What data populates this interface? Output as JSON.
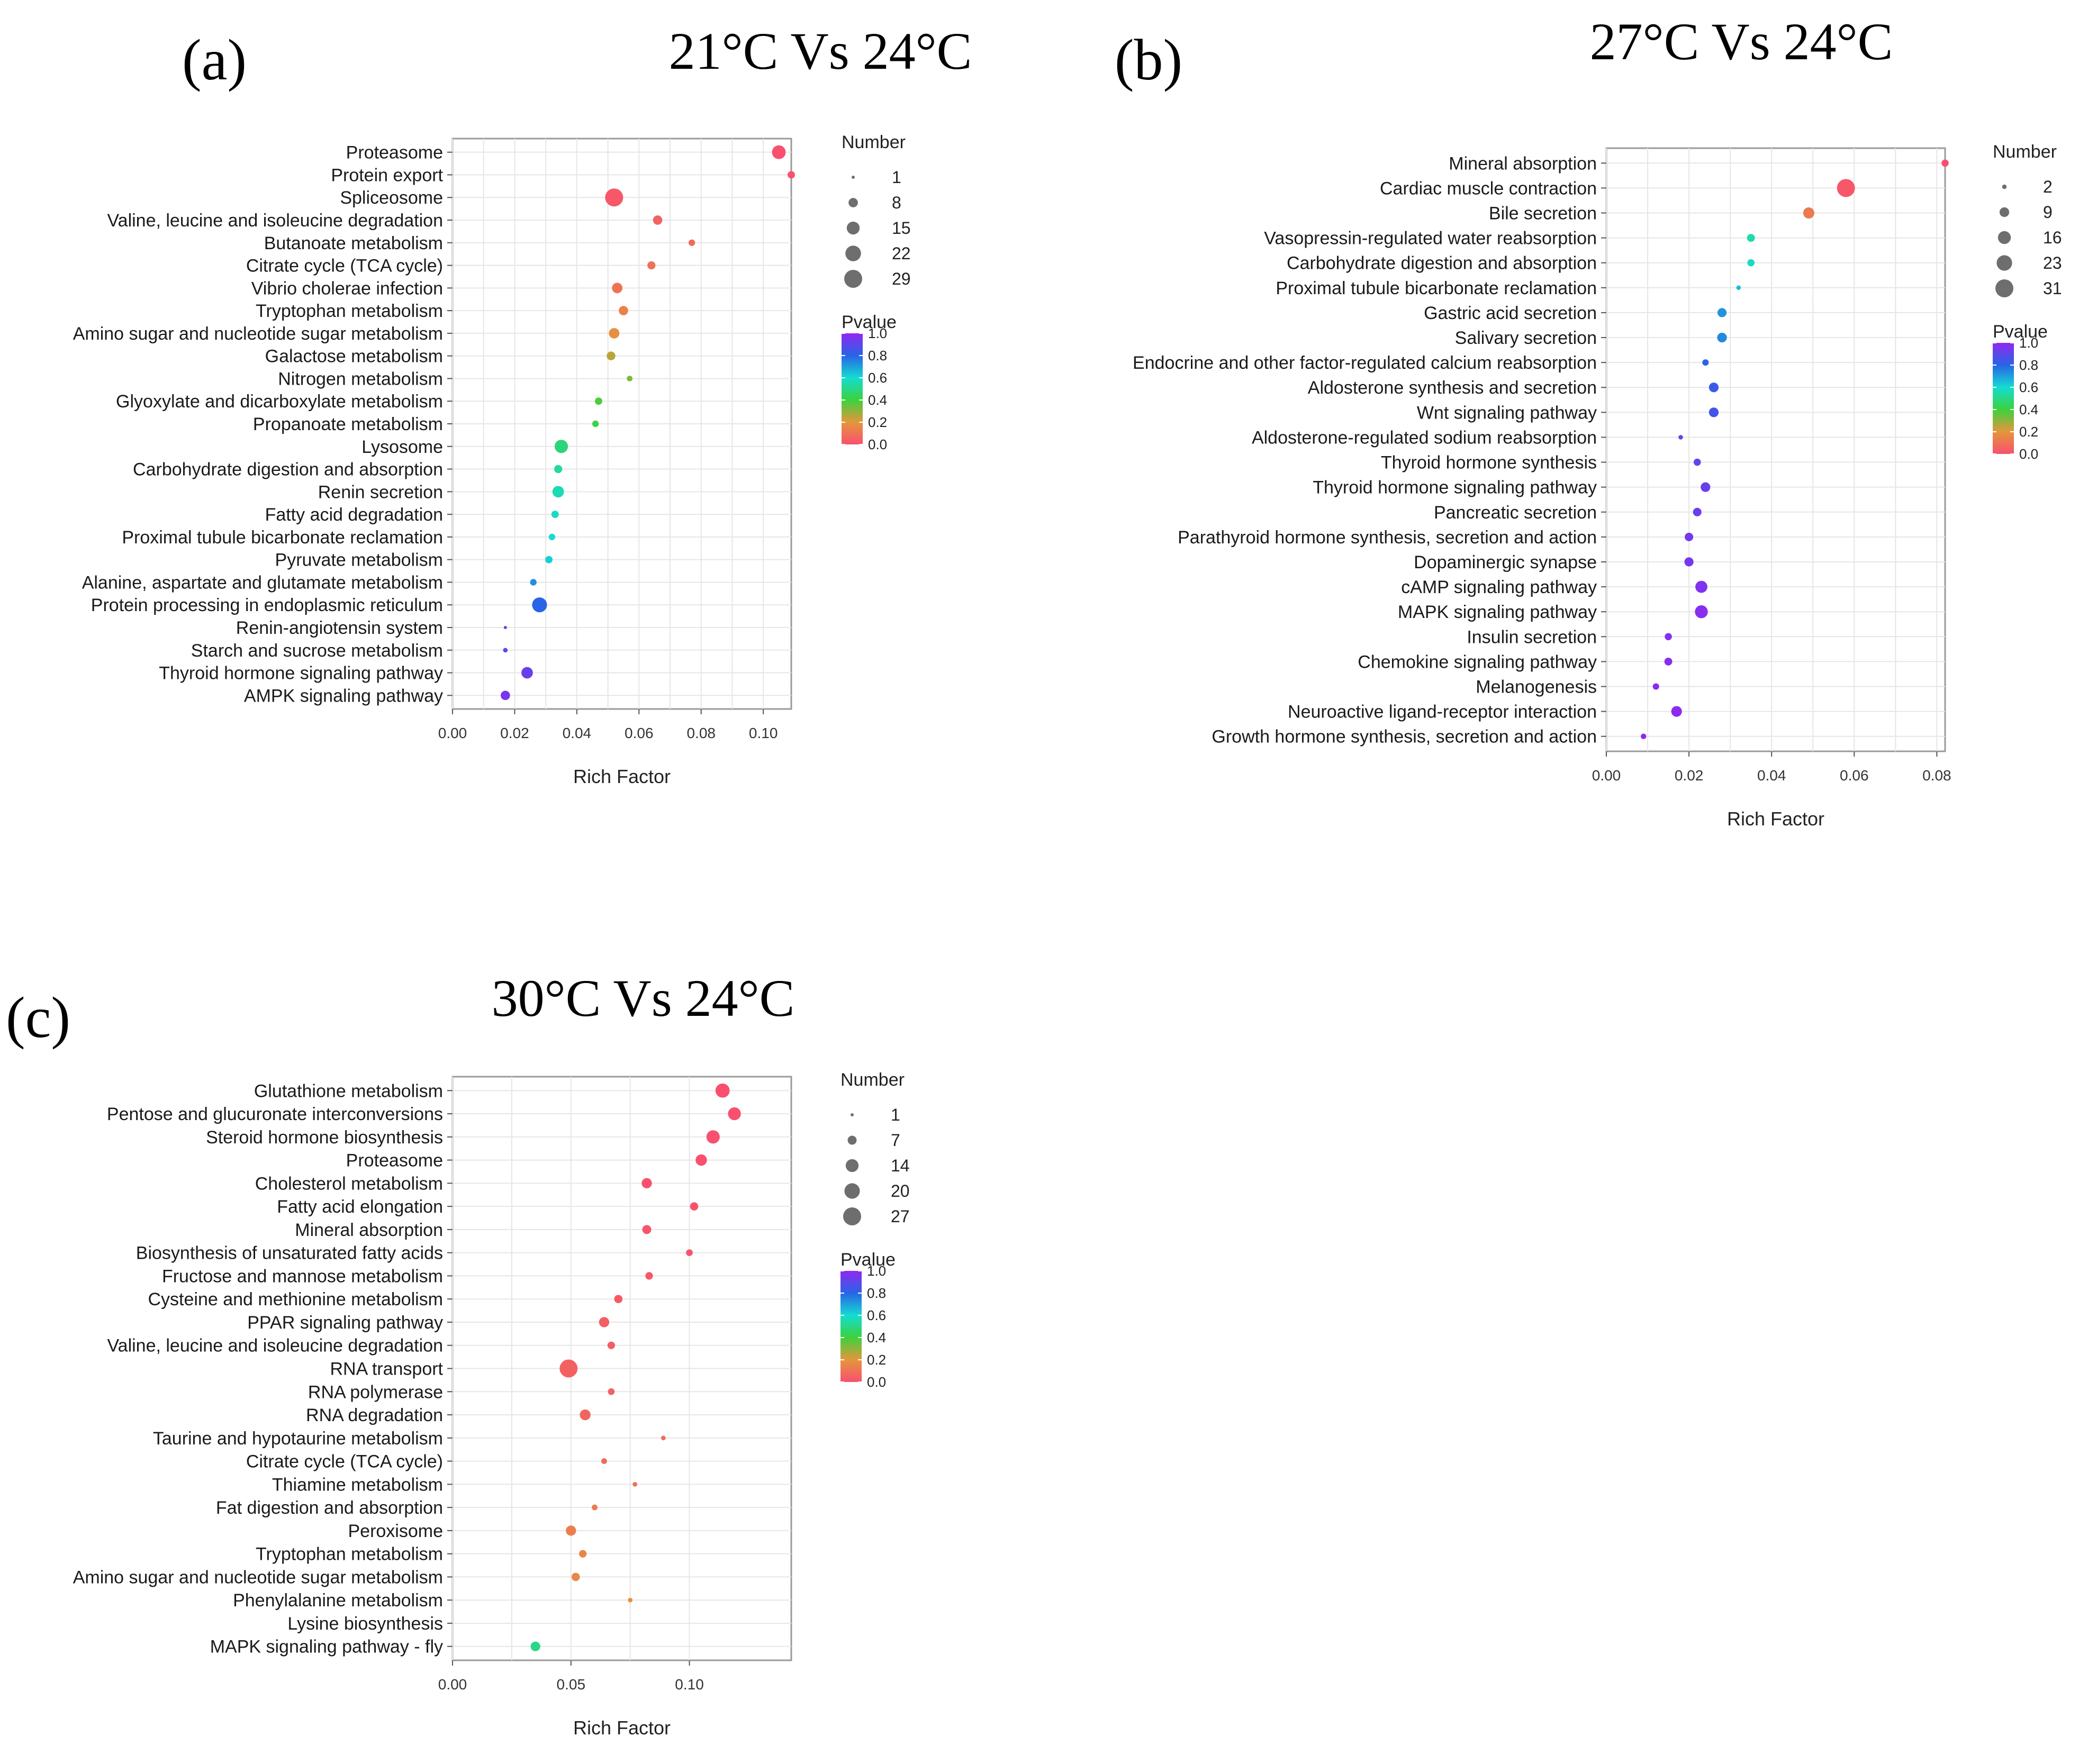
{
  "chart_data": [
    {
      "type": "scatter",
      "panel_label": "(a)",
      "title": "21°C Vs 24°C",
      "xlabel": "Rich Factor",
      "ylabel": "",
      "xlim": [
        0.0,
        0.109
      ],
      "xticks": [
        0.0,
        0.02,
        0.04,
        0.06,
        0.08,
        0.1
      ],
      "xtick_labels": [
        "0.00",
        "0.02",
        "0.04",
        "0.06",
        "0.08",
        "0.10"
      ],
      "size_legend_title": "Number",
      "size_legend": [
        1,
        8,
        15,
        22,
        29
      ],
      "size_range": [
        1,
        29
      ],
      "color_legend_title": "Pvalue",
      "color_ticks": [
        "1.0",
        "0.8",
        "0.6",
        "0.4",
        "0.2",
        "0.0"
      ],
      "points": [
        {
          "label": "Proteasome",
          "rich_factor": 0.105,
          "number": 17,
          "pvalue": 0.0
        },
        {
          "label": "Protein export",
          "rich_factor": 0.109,
          "number": 5,
          "pvalue": 0.0
        },
        {
          "label": "Spliceosome",
          "rich_factor": 0.052,
          "number": 29,
          "pvalue": 0.02
        },
        {
          "label": "Valine, leucine and isoleucine degradation",
          "rich_factor": 0.066,
          "number": 8,
          "pvalue": 0.05
        },
        {
          "label": "Butanoate metabolism",
          "rich_factor": 0.077,
          "number": 4,
          "pvalue": 0.08
        },
        {
          "label": "Citrate cycle (TCA cycle)",
          "rich_factor": 0.064,
          "number": 6,
          "pvalue": 0.1
        },
        {
          "label": "Vibrio cholerae infection",
          "rich_factor": 0.053,
          "number": 10,
          "pvalue": 0.1
        },
        {
          "label": "Tryptophan metabolism",
          "rich_factor": 0.055,
          "number": 8,
          "pvalue": 0.14
        },
        {
          "label": "Amino sugar and nucleotide sugar metabolism",
          "rich_factor": 0.052,
          "number": 10,
          "pvalue": 0.18
        },
        {
          "label": "Galactose metabolism",
          "rich_factor": 0.051,
          "number": 7,
          "pvalue": 0.25
        },
        {
          "label": "Nitrogen metabolism",
          "rich_factor": 0.057,
          "number": 3,
          "pvalue": 0.33
        },
        {
          "label": "Glyoxylate and dicarboxylate metabolism",
          "rich_factor": 0.047,
          "number": 5,
          "pvalue": 0.38
        },
        {
          "label": "Propanoate metabolism",
          "rich_factor": 0.046,
          "number": 4,
          "pvalue": 0.42
        },
        {
          "label": "Lysosome",
          "rich_factor": 0.035,
          "number": 16,
          "pvalue": 0.48
        },
        {
          "label": "Carbohydrate digestion and absorption",
          "rich_factor": 0.034,
          "number": 6,
          "pvalue": 0.53
        },
        {
          "label": "Renin secretion",
          "rich_factor": 0.034,
          "number": 12,
          "pvalue": 0.56
        },
        {
          "label": "Fatty acid degradation",
          "rich_factor": 0.033,
          "number": 5,
          "pvalue": 0.58
        },
        {
          "label": "Proximal tubule bicarbonate reclamation",
          "rich_factor": 0.032,
          "number": 4,
          "pvalue": 0.6
        },
        {
          "label": "Pyruvate metabolism",
          "rich_factor": 0.031,
          "number": 5,
          "pvalue": 0.62
        },
        {
          "label": "Alanine, aspartate and glutamate metabolism",
          "rich_factor": 0.026,
          "number": 4,
          "pvalue": 0.73
        },
        {
          "label": "Protein processing in endoplasmic reticulum",
          "rich_factor": 0.028,
          "number": 20,
          "pvalue": 0.8
        },
        {
          "label": "Renin-angiotensin system",
          "rich_factor": 0.017,
          "number": 1,
          "pvalue": 0.9
        },
        {
          "label": "Starch and sucrose metabolism",
          "rich_factor": 0.017,
          "number": 2,
          "pvalue": 0.88
        },
        {
          "label": "Thyroid hormone signaling pathway",
          "rich_factor": 0.024,
          "number": 12,
          "pvalue": 0.92
        },
        {
          "label": "AMPK signaling pathway",
          "rich_factor": 0.017,
          "number": 8,
          "pvalue": 0.95
        }
      ]
    },
    {
      "type": "scatter",
      "panel_label": "(b)",
      "title": "27°C Vs 24°C",
      "xlabel": "Rich Factor",
      "ylabel": "",
      "xlim": [
        0.0,
        0.082
      ],
      "xticks": [
        0.0,
        0.02,
        0.04,
        0.06,
        0.08
      ],
      "xtick_labels": [
        "0.00",
        "0.02",
        "0.04",
        "0.06",
        "0.08"
      ],
      "size_legend_title": "Number",
      "size_legend": [
        2,
        9,
        16,
        23,
        31
      ],
      "size_range": [
        1,
        31
      ],
      "color_legend_title": "Pvalue",
      "color_ticks": [
        "1.0",
        "0.8",
        "0.6",
        "0.4",
        "0.2",
        "0.0"
      ],
      "points": [
        {
          "label": "Mineral absorption",
          "rich_factor": 0.082,
          "number": 5,
          "pvalue": 0.0
        },
        {
          "label": "Cardiac muscle contraction",
          "rich_factor": 0.058,
          "number": 31,
          "pvalue": 0.02
        },
        {
          "label": "Bile secretion",
          "rich_factor": 0.049,
          "number": 12,
          "pvalue": 0.12
        },
        {
          "label": "Vasopressin-regulated water reabsorption",
          "rich_factor": 0.035,
          "number": 6,
          "pvalue": 0.55
        },
        {
          "label": "Carbohydrate digestion and absorption",
          "rich_factor": 0.035,
          "number": 5,
          "pvalue": 0.58
        },
        {
          "label": "Proximal tubule bicarbonate reclamation",
          "rich_factor": 0.032,
          "number": 2,
          "pvalue": 0.65
        },
        {
          "label": "Gastric acid secretion",
          "rich_factor": 0.028,
          "number": 8,
          "pvalue": 0.72
        },
        {
          "label": "Salivary secretion",
          "rich_factor": 0.028,
          "number": 9,
          "pvalue": 0.74
        },
        {
          "label": "Endocrine and other factor-regulated calcium reabsorption",
          "rich_factor": 0.024,
          "number": 4,
          "pvalue": 0.8
        },
        {
          "label": "Aldosterone synthesis and secretion",
          "rich_factor": 0.026,
          "number": 9,
          "pvalue": 0.83
        },
        {
          "label": "Wnt signaling pathway",
          "rich_factor": 0.026,
          "number": 9,
          "pvalue": 0.85
        },
        {
          "label": "Aldosterone-regulated sodium reabsorption",
          "rich_factor": 0.018,
          "number": 2,
          "pvalue": 0.88
        },
        {
          "label": "Thyroid hormone synthesis",
          "rich_factor": 0.022,
          "number": 5,
          "pvalue": 0.9
        },
        {
          "label": "Thyroid hormone signaling pathway",
          "rich_factor": 0.024,
          "number": 9,
          "pvalue": 0.92
        },
        {
          "label": "Pancreatic secretion",
          "rich_factor": 0.022,
          "number": 7,
          "pvalue": 0.93
        },
        {
          "label": "Parathyroid hormone synthesis, secretion and action",
          "rich_factor": 0.02,
          "number": 7,
          "pvalue": 0.94
        },
        {
          "label": "Dopaminergic synapse",
          "rich_factor": 0.02,
          "number": 8,
          "pvalue": 0.95
        },
        {
          "label": "cAMP signaling pathway",
          "rich_factor": 0.023,
          "number": 14,
          "pvalue": 0.97
        },
        {
          "label": "MAPK signaling pathway",
          "rich_factor": 0.023,
          "number": 16,
          "pvalue": 0.98
        },
        {
          "label": "Insulin secretion",
          "rich_factor": 0.015,
          "number": 5,
          "pvalue": 0.97
        },
        {
          "label": "Chemokine signaling pathway",
          "rich_factor": 0.015,
          "number": 6,
          "pvalue": 0.98
        },
        {
          "label": "Melanogenesis",
          "rich_factor": 0.012,
          "number": 4,
          "pvalue": 0.98
        },
        {
          "label": "Neuroactive ligand-receptor interaction",
          "rich_factor": 0.017,
          "number": 11,
          "pvalue": 0.99
        },
        {
          "label": "Growth hormone synthesis, secretion and action",
          "rich_factor": 0.009,
          "number": 3,
          "pvalue": 1.0
        }
      ]
    },
    {
      "type": "scatter",
      "panel_label": "(c)",
      "title": "30°C Vs 24°C",
      "xlabel": "Rich Factor",
      "ylabel": "",
      "xlim": [
        0.0,
        0.143
      ],
      "xticks": [
        0.0,
        0.05,
        0.1
      ],
      "xtick_labels": [
        "0.00",
        "0.05",
        "0.10"
      ],
      "size_legend_title": "Number",
      "size_legend": [
        1,
        7,
        14,
        20,
        27
      ],
      "size_range": [
        1,
        27
      ],
      "color_legend_title": "Pvalue",
      "color_ticks": [
        "1.0",
        "0.8",
        "0.6",
        "0.4",
        "0.2",
        "0.0"
      ],
      "points": [
        {
          "label": "Glutathione metabolism",
          "rich_factor": 0.114,
          "number": 17,
          "pvalue": 0.0
        },
        {
          "label": "Pentose and glucuronate interconversions",
          "rich_factor": 0.119,
          "number": 14,
          "pvalue": 0.0
        },
        {
          "label": "Steroid hormone biosynthesis",
          "rich_factor": 0.11,
          "number": 15,
          "pvalue": 0.0
        },
        {
          "label": "Proteasome",
          "rich_factor": 0.105,
          "number": 11,
          "pvalue": 0.0
        },
        {
          "label": "Cholesterol metabolism",
          "rich_factor": 0.082,
          "number": 9,
          "pvalue": 0.0
        },
        {
          "label": "Fatty acid elongation",
          "rich_factor": 0.102,
          "number": 6,
          "pvalue": 0.01
        },
        {
          "label": "Mineral absorption",
          "rich_factor": 0.082,
          "number": 7,
          "pvalue": 0.01
        },
        {
          "label": "Biosynthesis of unsaturated fatty acids",
          "rich_factor": 0.1,
          "number": 4,
          "pvalue": 0.01
        },
        {
          "label": "Fructose and mannose metabolism",
          "rich_factor": 0.083,
          "number": 5,
          "pvalue": 0.02
        },
        {
          "label": "Cysteine and methionine metabolism",
          "rich_factor": 0.07,
          "number": 6,
          "pvalue": 0.03
        },
        {
          "label": "PPAR signaling pathway",
          "rich_factor": 0.064,
          "number": 9,
          "pvalue": 0.04
        },
        {
          "label": "Valine, leucine and isoleucine degradation",
          "rich_factor": 0.067,
          "number": 5,
          "pvalue": 0.04
        },
        {
          "label": "RNA transport",
          "rich_factor": 0.049,
          "number": 27,
          "pvalue": 0.05
        },
        {
          "label": "RNA polymerase",
          "rich_factor": 0.067,
          "number": 4,
          "pvalue": 0.05
        },
        {
          "label": "RNA degradation",
          "rich_factor": 0.056,
          "number": 10,
          "pvalue": 0.06
        },
        {
          "label": "Taurine and hypotaurine metabolism",
          "rich_factor": 0.089,
          "number": 2,
          "pvalue": 0.07
        },
        {
          "label": "Citrate cycle (TCA cycle)",
          "rich_factor": 0.064,
          "number": 3,
          "pvalue": 0.08
        },
        {
          "label": "Thiamine metabolism",
          "rich_factor": 0.077,
          "number": 2,
          "pvalue": 0.1
        },
        {
          "label": "Fat digestion and absorption",
          "rich_factor": 0.06,
          "number": 3,
          "pvalue": 0.12
        },
        {
          "label": "Peroxisome",
          "rich_factor": 0.05,
          "number": 9,
          "pvalue": 0.13
        },
        {
          "label": "Tryptophan metabolism",
          "rich_factor": 0.055,
          "number": 5,
          "pvalue": 0.15
        },
        {
          "label": "Amino sugar and nucleotide sugar metabolism",
          "rich_factor": 0.052,
          "number": 6,
          "pvalue": 0.16
        },
        {
          "label": "Phenylalanine metabolism",
          "rich_factor": 0.075,
          "number": 2,
          "pvalue": 0.18
        },
        {
          "label": "Lysine biosynthesis",
          "rich_factor": null,
          "number": null,
          "pvalue": null
        },
        {
          "label": "MAPK signaling pathway - fly",
          "rich_factor": 0.035,
          "number": 8,
          "pvalue": 0.5
        }
      ]
    }
  ]
}
